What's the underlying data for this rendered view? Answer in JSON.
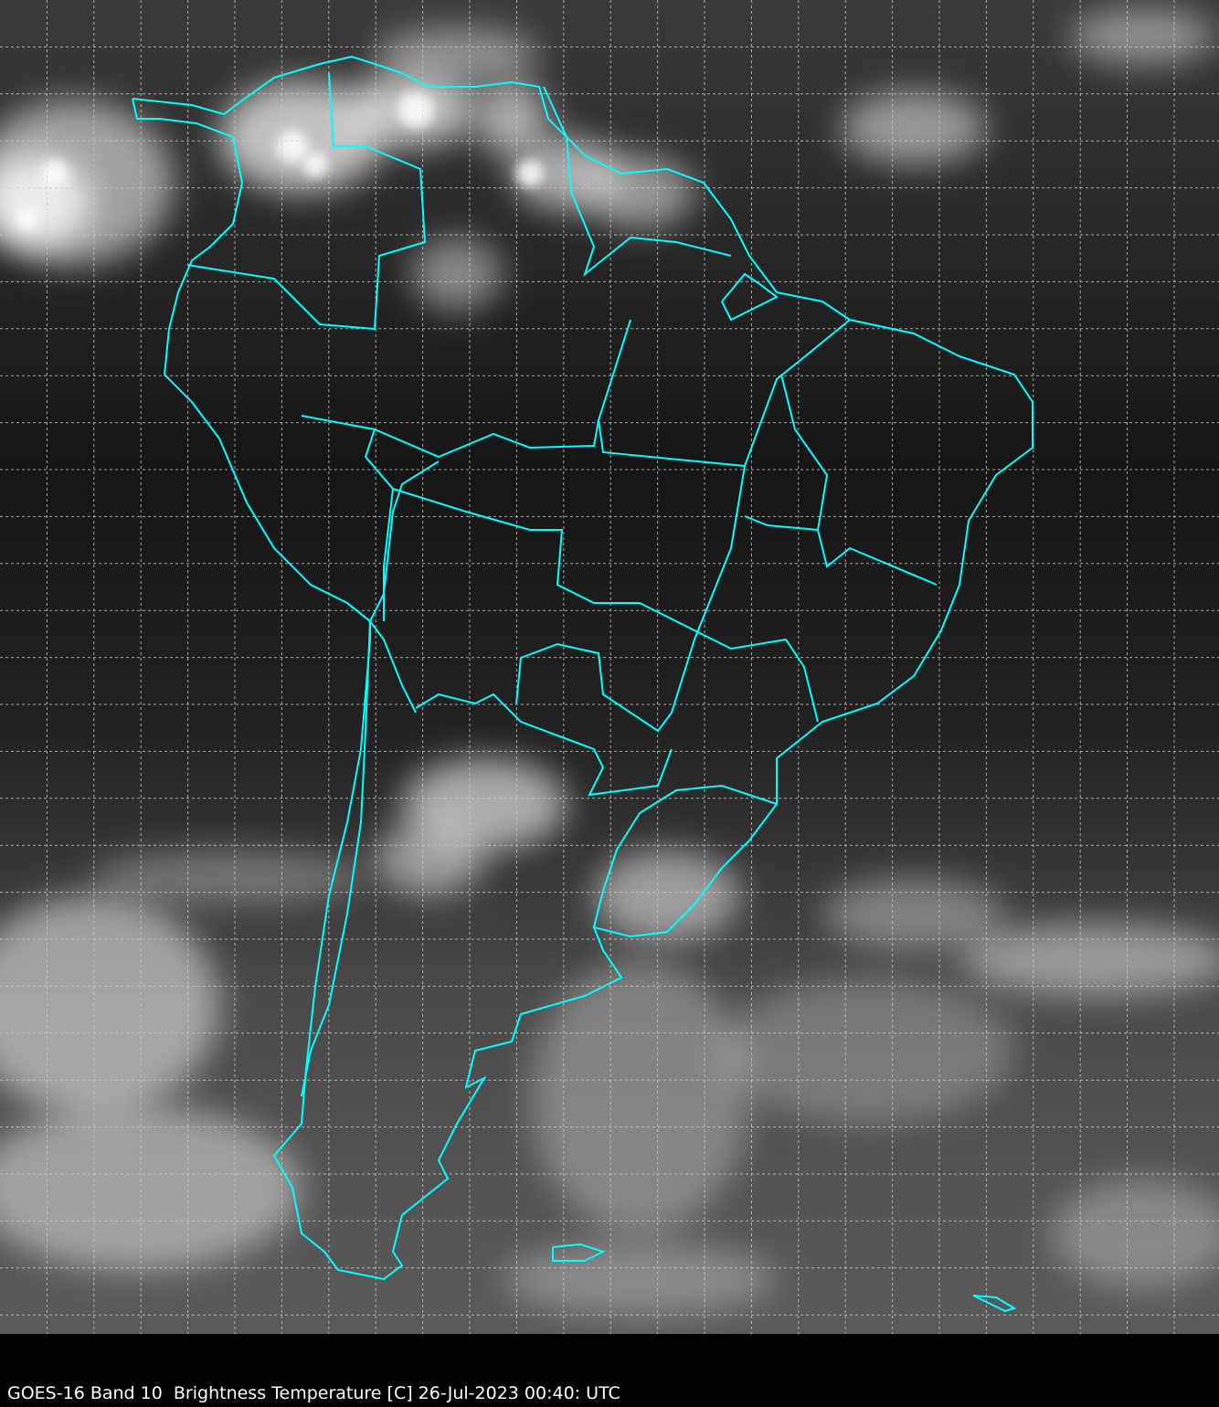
{
  "caption": "GOES-16 Band 10  Brightness Temperature [C] 26-Jul-2023 00:40: UTC",
  "colors": {
    "coastline": "#00ffff",
    "grid": "#cccccc",
    "background": "#000000"
  },
  "imagery": {
    "satellite": "GOES-16",
    "band": "10",
    "product": "Brightness Temperature",
    "colormap": "grayscale"
  }
}
